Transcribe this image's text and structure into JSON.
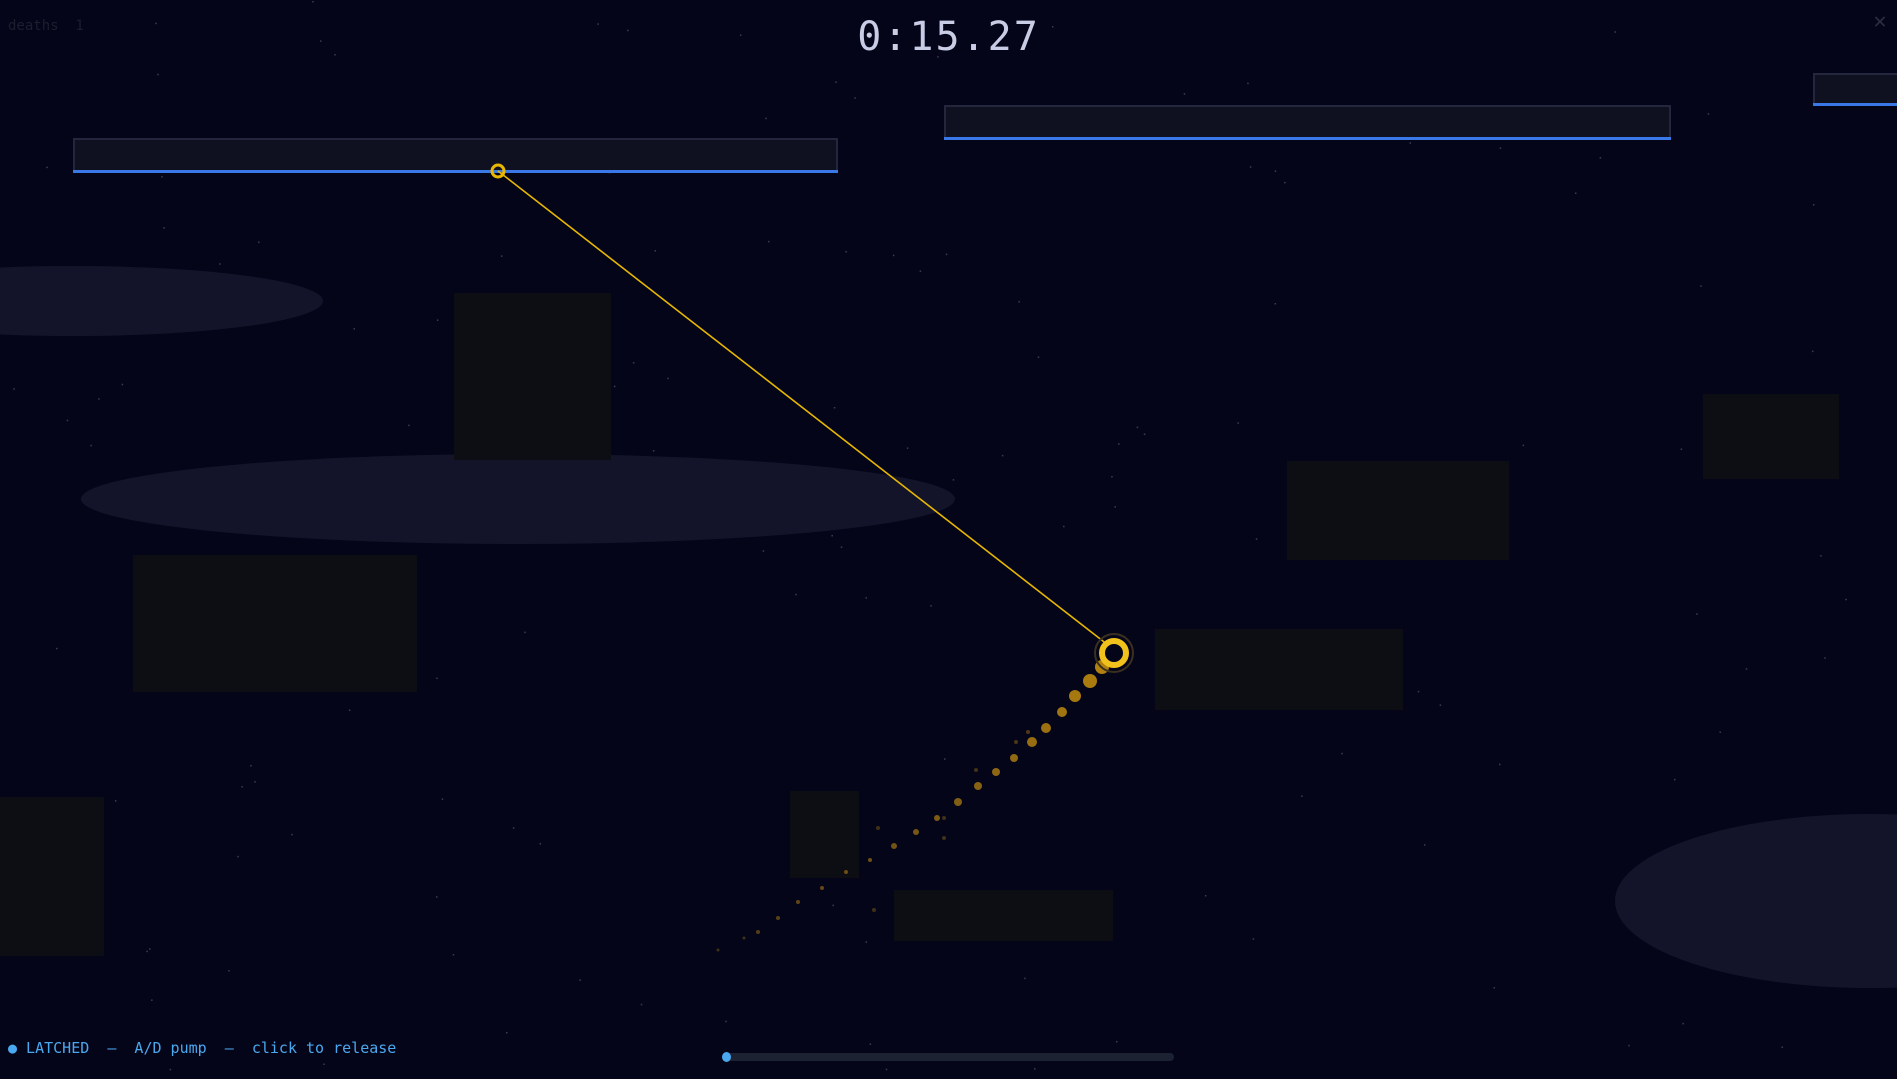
{
  "hud": {
    "deaths_label": "deaths  1",
    "timer": "0:15.27",
    "close_icon": "close-x-icon",
    "status_text": "● LATCHED  —  A/D pump  —  click to release",
    "progress": 0
  },
  "colors": {
    "background": "#05051a",
    "platform_fill": "#0f1120",
    "platform_border": "#23263d",
    "platform_edge": "#3a78e8",
    "rope": "#e8b800",
    "player": "#f2c21c",
    "trail": "#b08010",
    "obstacle": "#0d0e14",
    "cloud": "#13132a",
    "accent": "#4aa8ee"
  },
  "player": {
    "state": "latched"
  }
}
